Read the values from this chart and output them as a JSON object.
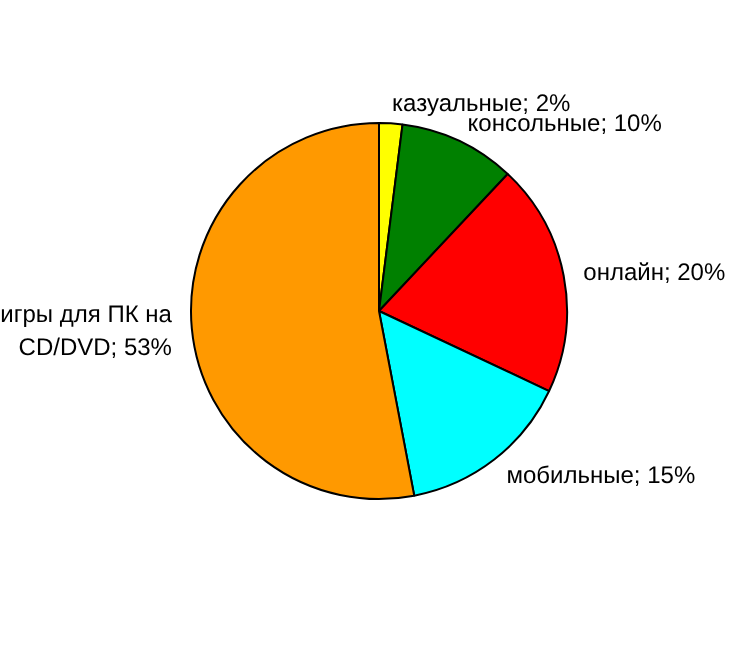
{
  "chart_data": {
    "type": "pie",
    "categories": [
      "казуальные",
      "консольные",
      "онлайн",
      "мобильные",
      "игры для ПК на CD/DVD"
    ],
    "values": [
      2,
      10,
      20,
      15,
      53
    ],
    "value_labels": [
      "2%",
      "10%",
      "20%",
      "15%",
      "53%"
    ],
    "colors": [
      "#ffff00",
      "#008000",
      "#ff0000",
      "#00ffff",
      "#ff9900"
    ]
  }
}
